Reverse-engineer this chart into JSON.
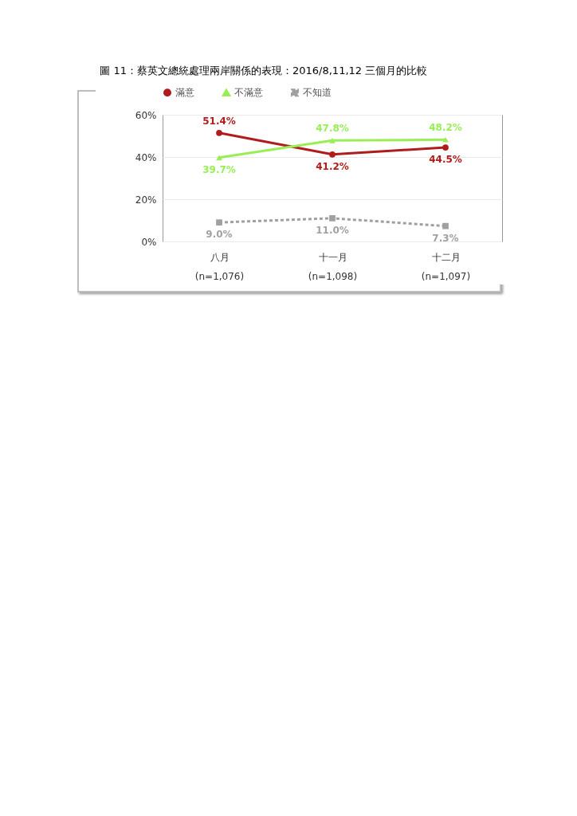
{
  "chart_data": {
    "type": "line",
    "title": "圖 11：蔡英文總統處理兩岸關係的表現：2016/8,11,12 三個月的比較",
    "categories": [
      "八月\n(n=1,076)",
      "十一月\n(n=1,098)",
      "十二月\n(n=1,097)"
    ],
    "series": [
      {
        "name": "滿意",
        "color": "#b01c1c",
        "marker": "circle",
        "line_style": "solid",
        "values": [
          51.4,
          41.2,
          44.5
        ]
      },
      {
        "name": "不滿意",
        "color": "#99ee55",
        "marker": "triangle",
        "line_style": "solid",
        "values": [
          39.7,
          47.8,
          48.2
        ]
      },
      {
        "name": "不知道",
        "color": "#a0a0a0",
        "marker": "square",
        "line_style": "dashed",
        "values": [
          9.0,
          11.0,
          7.3
        ]
      }
    ],
    "value_labels": [
      [
        "51.4%",
        "41.2%",
        "44.5%"
      ],
      [
        "39.7%",
        "47.8%",
        "48.2%"
      ],
      [
        "9.0%",
        "11.0%",
        "7.3%"
      ]
    ],
    "ylim": [
      0,
      60
    ],
    "yticks": [
      {
        "value": 0,
        "label": "0%"
      },
      {
        "value": 20,
        "label": "20%"
      },
      {
        "value": 40,
        "label": "40%"
      },
      {
        "value": 60,
        "label": "60%"
      }
    ],
    "grid": "y",
    "legend": "top"
  }
}
